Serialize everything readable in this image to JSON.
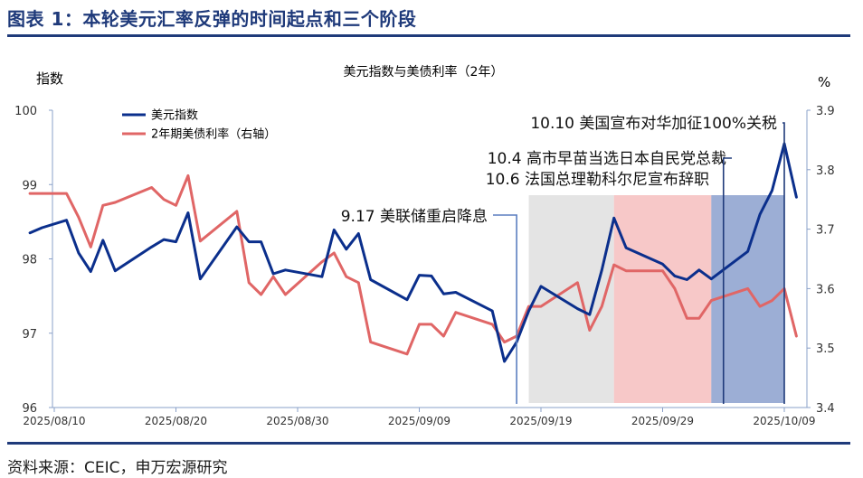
{
  "title": "图表 1：本轮美元汇率反弹的时间起点和三个阶段",
  "source": "资料来源：CEIC，申万宏源研究",
  "chart_data": {
    "type": "line",
    "subtitle": "美元指数与美债利率（2年）",
    "left_axis": {
      "label": "指数",
      "ylim": [
        96,
        100
      ],
      "ticks": [
        "96",
        "97",
        "98",
        "99",
        "100"
      ]
    },
    "right_axis": {
      "label": "%",
      "ylim": [
        3.4,
        3.9
      ],
      "ticks": [
        "3.4",
        "3.5",
        "3.6",
        "3.7",
        "3.8",
        "3.9"
      ]
    },
    "x_axis": {
      "range": [
        "2025-08-10",
        "2025-10-10"
      ],
      "ticks": [
        {
          "date": "2025-08-10",
          "label": "2025/08/10"
        },
        {
          "date": "2025-08-20",
          "label": "2025/08/20"
        },
        {
          "date": "2025-08-30",
          "label": "2025/08/30"
        },
        {
          "date": "2025-09-09",
          "label": "2025/09/09"
        },
        {
          "date": "2025-09-19",
          "label": "2025/09/19"
        },
        {
          "date": "2025-09-29",
          "label": "2025/09/29"
        },
        {
          "date": "2025-10-09",
          "label": "2025/10/09"
        }
      ]
    },
    "legend": {
      "placement": "top-left"
    },
    "series": [
      {
        "name": "美元指数",
        "axis": "left",
        "color": "#0b2f8c",
        "points": [
          [
            "2025-08-08",
            98.35
          ],
          [
            "2025-08-09",
            98.42
          ],
          [
            "2025-08-11",
            98.52
          ],
          [
            "2025-08-12",
            98.08
          ],
          [
            "2025-08-13",
            97.83
          ],
          [
            "2025-08-14",
            98.25
          ],
          [
            "2025-08-15",
            97.84
          ],
          [
            "2025-08-18",
            98.16
          ],
          [
            "2025-08-19",
            98.26
          ],
          [
            "2025-08-20",
            98.23
          ],
          [
            "2025-08-21",
            98.62
          ],
          [
            "2025-08-22",
            97.73
          ],
          [
            "2025-08-25",
            98.43
          ],
          [
            "2025-08-26",
            98.23
          ],
          [
            "2025-08-27",
            98.23
          ],
          [
            "2025-08-28",
            97.8
          ],
          [
            "2025-08-29",
            97.85
          ],
          [
            "2025-09-01",
            97.76
          ],
          [
            "2025-09-02",
            98.39
          ],
          [
            "2025-09-03",
            98.13
          ],
          [
            "2025-09-04",
            98.34
          ],
          [
            "2025-09-05",
            97.72
          ],
          [
            "2025-09-08",
            97.45
          ],
          [
            "2025-09-09",
            97.78
          ],
          [
            "2025-09-10",
            97.77
          ],
          [
            "2025-09-11",
            97.53
          ],
          [
            "2025-09-12",
            97.55
          ],
          [
            "2025-09-15",
            97.3
          ],
          [
            "2025-09-16",
            96.62
          ],
          [
            "2025-09-17",
            96.88
          ],
          [
            "2025-09-18",
            97.3
          ],
          [
            "2025-09-19",
            97.63
          ],
          [
            "2025-09-22",
            97.33
          ],
          [
            "2025-09-23",
            97.25
          ],
          [
            "2025-09-24",
            97.85
          ],
          [
            "2025-09-25",
            98.55
          ],
          [
            "2025-09-26",
            98.15
          ],
          [
            "2025-09-29",
            97.93
          ],
          [
            "2025-09-30",
            97.77
          ],
          [
            "2025-10-01",
            97.72
          ],
          [
            "2025-10-02",
            97.85
          ],
          [
            "2025-10-03",
            97.73
          ],
          [
            "2025-10-06",
            98.1
          ],
          [
            "2025-10-07",
            98.6
          ],
          [
            "2025-10-08",
            98.92
          ],
          [
            "2025-10-09",
            99.55
          ],
          [
            "2025-10-10",
            98.83
          ]
        ]
      },
      {
        "name": "2年期美债利率（右轴）",
        "axis": "right",
        "color": "#e06666",
        "points": [
          [
            "2025-08-08",
            3.76
          ],
          [
            "2025-08-09",
            3.76
          ],
          [
            "2025-08-11",
            3.76
          ],
          [
            "2025-08-12",
            3.72
          ],
          [
            "2025-08-13",
            3.67
          ],
          [
            "2025-08-14",
            3.74
          ],
          [
            "2025-08-15",
            3.745
          ],
          [
            "2025-08-18",
            3.77
          ],
          [
            "2025-08-19",
            3.75
          ],
          [
            "2025-08-20",
            3.74
          ],
          [
            "2025-08-21",
            3.79
          ],
          [
            "2025-08-22",
            3.68
          ],
          [
            "2025-08-25",
            3.73
          ],
          [
            "2025-08-26",
            3.61
          ],
          [
            "2025-08-27",
            3.59
          ],
          [
            "2025-08-28",
            3.62
          ],
          [
            "2025-08-29",
            3.59
          ],
          [
            "2025-09-01",
            3.645
          ],
          [
            "2025-09-02",
            3.66
          ],
          [
            "2025-09-03",
            3.62
          ],
          [
            "2025-09-04",
            3.61
          ],
          [
            "2025-09-05",
            3.51
          ],
          [
            "2025-09-08",
            3.49
          ],
          [
            "2025-09-09",
            3.54
          ],
          [
            "2025-09-10",
            3.54
          ],
          [
            "2025-09-11",
            3.52
          ],
          [
            "2025-09-12",
            3.56
          ],
          [
            "2025-09-15",
            3.54
          ],
          [
            "2025-09-16",
            3.51
          ],
          [
            "2025-09-17",
            3.52
          ],
          [
            "2025-09-18",
            3.57
          ],
          [
            "2025-09-19",
            3.57
          ],
          [
            "2025-09-22",
            3.61
          ],
          [
            "2025-09-23",
            3.53
          ],
          [
            "2025-09-24",
            3.57
          ],
          [
            "2025-09-25",
            3.64
          ],
          [
            "2025-09-26",
            3.63
          ],
          [
            "2025-09-29",
            3.63
          ],
          [
            "2025-09-30",
            3.6
          ],
          [
            "2025-10-01",
            3.55
          ],
          [
            "2025-10-02",
            3.55
          ],
          [
            "2025-10-03",
            3.58
          ],
          [
            "2025-10-06",
            3.6
          ],
          [
            "2025-10-07",
            3.57
          ],
          [
            "2025-10-08",
            3.58
          ],
          [
            "2025-10-09",
            3.6
          ],
          [
            "2025-10-10",
            3.52
          ]
        ]
      }
    ],
    "phases": [
      {
        "from": "2025-09-18",
        "to": "2025-09-25",
        "color": "#d9d9d9",
        "opacity": 0.7
      },
      {
        "from": "2025-09-25",
        "to": "2025-10-03",
        "color": "#f2a3a3",
        "opacity": 0.6
      },
      {
        "from": "2025-10-03",
        "to": "2025-10-09",
        "color": "#4a6cb3",
        "opacity": 0.55
      }
    ],
    "annotations": [
      {
        "text": "9.17 美联储重启降息",
        "date": "2025-09-17",
        "label_end": "2025-09-16.5"
      },
      {
        "text": "10.4 高市早苗当选日本自民党总裁",
        "date": "2025-10-04"
      },
      {
        "text": "10.6 法国总理勒科尔尼宣布辞职",
        "date": "2025-10-06"
      },
      {
        "text": "10.10 美国宣布对华加征100%关税",
        "date": "2025-10-09"
      }
    ]
  }
}
